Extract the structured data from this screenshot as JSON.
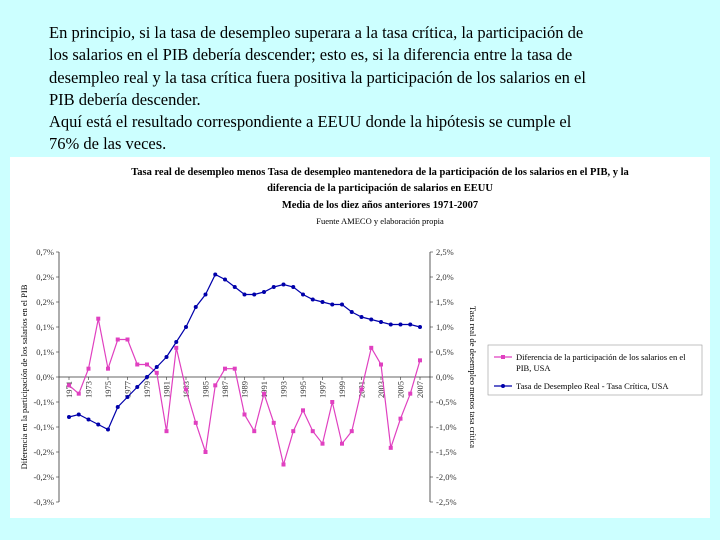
{
  "intro": {
    "line1": "En principio, si la tasa de desempleo superara a la tasa crítica, la participación de",
    "line2": "los salarios en el PIB debería descender; esto es, si la diferencia entre la tasa de",
    "line3": "desempleo real y la tasa crítica fuera positiva la participación de los salarios en el",
    "line4": "PIB debería descender.",
    "line5": "Aquí está el resultado correspondiente a EEUU donde la hipótesis se cumple el",
    "line6": "76% de las veces."
  },
  "chart_data": {
    "type": "line",
    "title_lines": [
      "Tasa real de desempleo menos Tasa de desempleo mantenedora de la participación de los salarios en el PIB, y la",
      "diferencia de la participación de salarios en EEUU",
      "Media de los diez años anteriores 1971-2007"
    ],
    "subtitle": "Fuente AMECO y elaboración propia",
    "ylabel_left": "Diferencia en la participación de los salarios en el PIB",
    "ylabel_right": "Tasa real de desempleo menos tasa crítica",
    "y_left_ticks": [
      "0,7%",
      "0,2%",
      "0,2%",
      "0,1%",
      "0,1%",
      "0,0%",
      "-0,1%",
      "-0,1%",
      "-0,2%",
      "-0,2%",
      "-0,3%"
    ],
    "y_left_range": [
      -0.3,
      0.3
    ],
    "y_right_ticks": [
      "2,5%",
      "2,0%",
      "1,5%",
      "1,0%",
      "0,5%",
      "0,0%",
      "-0,5%",
      "-1,0%",
      "-1,5%",
      "-2,0%",
      "-2,5%"
    ],
    "y_right_range": [
      -2.5,
      2.5
    ],
    "x_tick_labels": [
      "1971",
      "1973",
      "1975",
      "1977",
      "1979",
      "1981",
      "1983",
      "1985",
      "1987",
      "1989",
      "1991",
      "1993",
      "1995",
      "1997",
      "1999",
      "2001",
      "2003",
      "2005",
      "2007"
    ],
    "x": [
      1971,
      1972,
      1973,
      1974,
      1975,
      1976,
      1977,
      1978,
      1979,
      1980,
      1981,
      1982,
      1983,
      1984,
      1985,
      1986,
      1987,
      1988,
      1989,
      1990,
      1991,
      1992,
      1993,
      1994,
      1995,
      1996,
      1997,
      1998,
      1999,
      2000,
      2001,
      2002,
      2003,
      2004,
      2005,
      2006,
      2007
    ],
    "series": [
      {
        "name": "Diferencia de la participación de los salarios en el PIB, USA",
        "axis": "left",
        "color": "#e040c0",
        "marker": "square",
        "values": [
          -0.02,
          -0.04,
          0.02,
          0.14,
          0.02,
          0.09,
          0.09,
          0.03,
          0.03,
          0.01,
          -0.13,
          0.07,
          -0.03,
          -0.11,
          -0.18,
          -0.02,
          0.02,
          0.02,
          -0.09,
          -0.13,
          -0.04,
          -0.11,
          -0.21,
          -0.13,
          -0.08,
          -0.13,
          -0.16,
          -0.06,
          -0.16,
          -0.13,
          -0.03,
          0.07,
          0.03,
          -0.17,
          -0.1,
          -0.04,
          0.04
        ]
      },
      {
        "name": "Tasa de Desempleo Real - Tasa Crítica, USA",
        "axis": "right",
        "color": "#0000aa",
        "marker": "circle",
        "values": [
          -0.8,
          -0.75,
          -0.85,
          -0.95,
          -1.05,
          -0.6,
          -0.4,
          -0.2,
          0.0,
          0.2,
          0.4,
          0.7,
          1.0,
          1.4,
          1.65,
          2.05,
          1.95,
          1.8,
          1.65,
          1.65,
          1.7,
          1.8,
          1.85,
          1.8,
          1.65,
          1.55,
          1.5,
          1.45,
          1.45,
          1.3,
          1.2,
          1.15,
          1.1,
          1.05,
          1.05,
          1.05,
          1.0
        ]
      }
    ],
    "legend_position": "right",
    "grid": false
  }
}
